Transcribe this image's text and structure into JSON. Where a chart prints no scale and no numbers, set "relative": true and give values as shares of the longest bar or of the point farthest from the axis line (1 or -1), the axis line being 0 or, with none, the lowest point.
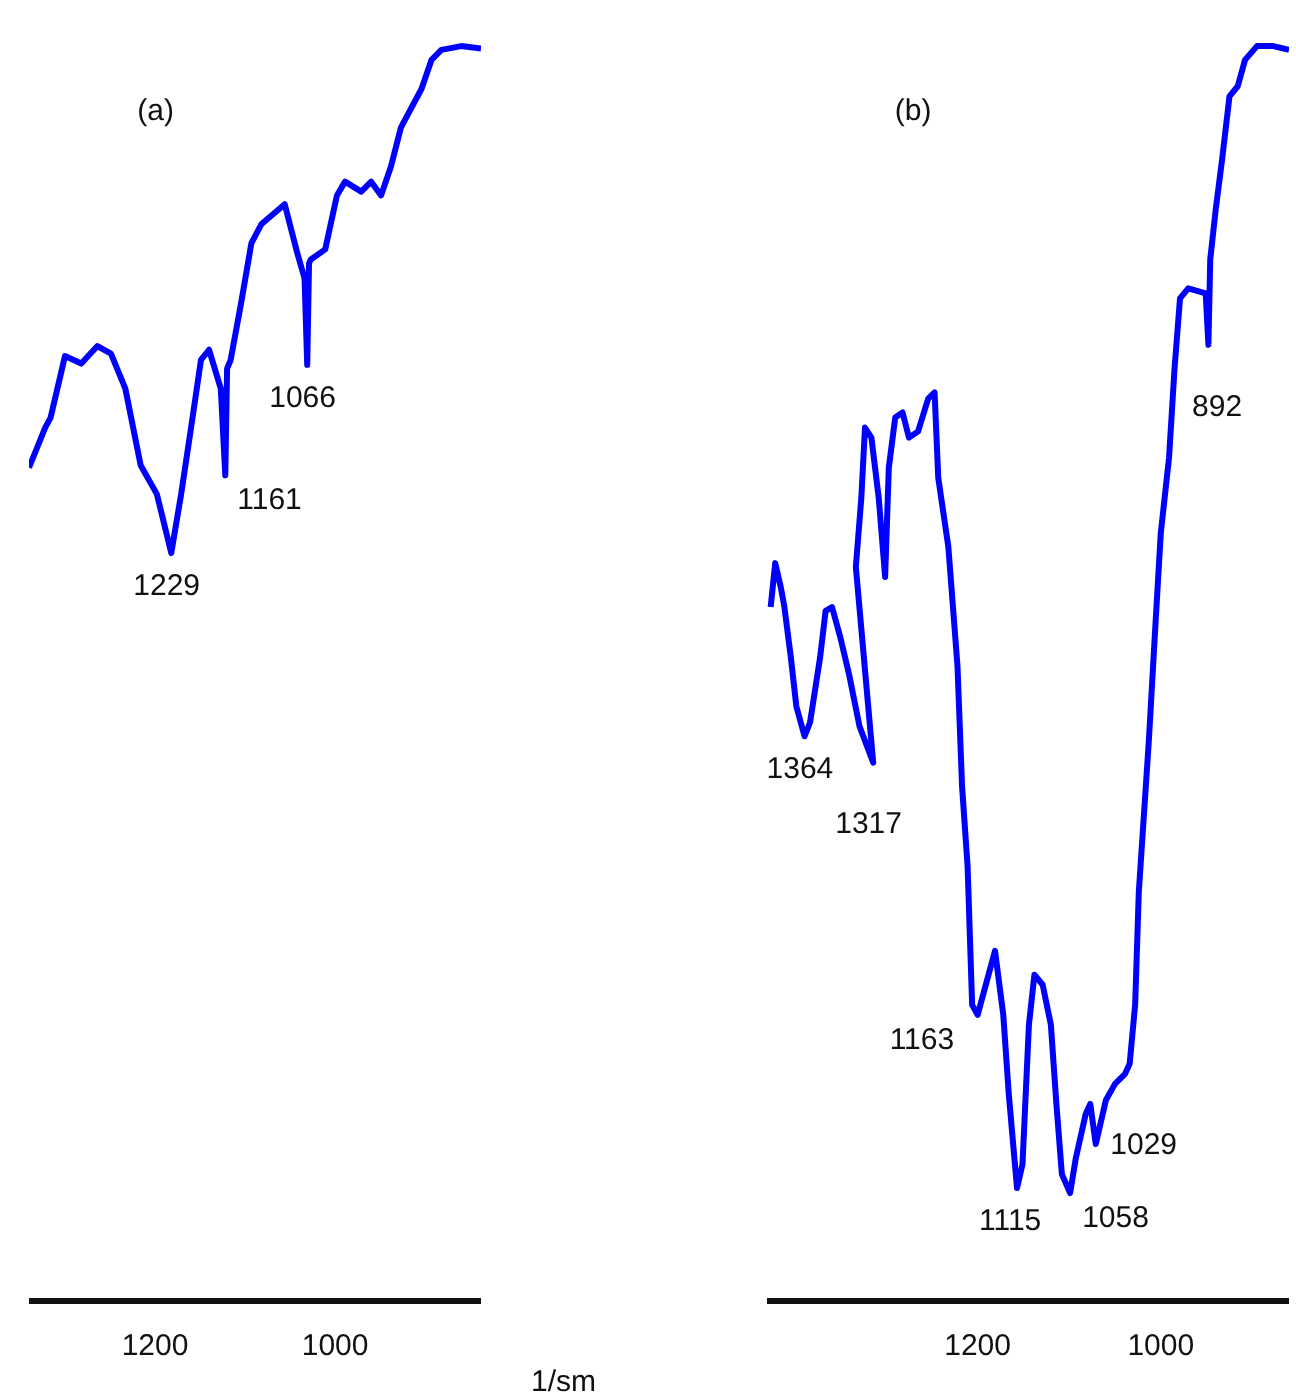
{
  "chart_data": [
    {
      "type": "line",
      "title": "(a)",
      "xlabel": "1/sm",
      "relative": true,
      "xlim": [
        1340,
        838
      ],
      "xticks": [
        1200,
        1000
      ],
      "grid": false,
      "legend": false,
      "tick_labels": "x",
      "series": [
        {
          "color": "#0000ff",
          "x": [
            1340,
            1322,
            1316,
            1300,
            1282,
            1264,
            1249,
            1233,
            1216,
            1198,
            1182,
            1171,
            1160,
            1149,
            1140,
            1127,
            1122,
            1120,
            1116,
            1104,
            1093,
            1082,
            1056,
            1042,
            1034,
            1031,
            1029,
            1027,
            1011,
            998,
            989,
            971,
            960,
            949,
            938,
            927,
            904,
            893,
            882,
            860,
            838
          ],
          "values": [
            0.664,
            0.696,
            0.704,
            0.753,
            0.747,
            0.761,
            0.755,
            0.727,
            0.666,
            0.643,
            0.596,
            0.643,
            0.696,
            0.75,
            0.758,
            0.727,
            0.658,
            0.743,
            0.75,
            0.797,
            0.843,
            0.858,
            0.874,
            0.835,
            0.815,
            0.746,
            0.827,
            0.83,
            0.838,
            0.881,
            0.892,
            0.884,
            0.892,
            0.881,
            0.904,
            0.935,
            0.966,
            0.989,
            0.997,
            1.0,
            0.998
          ]
        }
      ],
      "annotations": [
        {
          "text": "1229",
          "x": 1182,
          "y": 0.596
        },
        {
          "text": "1161",
          "x": 1122,
          "y": 0.658
        },
        {
          "text": "1066",
          "x": 1031,
          "y": 0.746
        }
      ]
    },
    {
      "type": "line",
      "title": "(b)",
      "relative": true,
      "xlim": [
        1430,
        860
      ],
      "xticks": [
        1200,
        1000
      ],
      "grid": false,
      "legend": false,
      "tick_labels": "x",
      "series": [
        {
          "color": "#0000ff",
          "x": [
            1426,
            1421,
            1415,
            1411,
            1404,
            1398,
            1389,
            1383,
            1372,
            1366,
            1359,
            1350,
            1340,
            1329,
            1314,
            1333,
            1327,
            1323,
            1316,
            1308,
            1301,
            1297,
            1290,
            1282,
            1275,
            1265,
            1254,
            1247,
            1243,
            1232,
            1222,
            1217,
            1211,
            1206,
            1200,
            1181,
            1172,
            1166,
            1157,
            1151,
            1144,
            1138,
            1129,
            1120,
            1114,
            1108,
            1099,
            1093,
            1082,
            1077,
            1071,
            1060,
            1050,
            1039,
            1034,
            1028,
            1024,
            1013,
            1006,
            1000,
            991,
            985,
            979,
            970,
            951,
            948,
            946,
            940,
            933,
            925,
            916,
            908,
            895,
            877,
            860
          ],
          "values": [
            0.553,
            0.588,
            0.569,
            0.553,
            0.513,
            0.474,
            0.45,
            0.461,
            0.513,
            0.55,
            0.553,
            0.529,
            0.498,
            0.458,
            0.429,
            0.585,
            0.64,
            0.696,
            0.688,
            0.64,
            0.577,
            0.664,
            0.704,
            0.708,
            0.688,
            0.693,
            0.719,
            0.724,
            0.656,
            0.601,
            0.506,
            0.41,
            0.347,
            0.236,
            0.228,
            0.279,
            0.228,
            0.165,
            0.09,
            0.109,
            0.22,
            0.26,
            0.252,
            0.22,
            0.157,
            0.101,
            0.086,
            0.113,
            0.149,
            0.157,
            0.125,
            0.16,
            0.173,
            0.181,
            0.189,
            0.236,
            0.326,
            0.447,
            0.537,
            0.612,
            0.672,
            0.743,
            0.799,
            0.807,
            0.803,
            0.762,
            0.83,
            0.87,
            0.91,
            0.96,
            0.968,
            0.989,
            1.0,
            1.0,
            0.997
          ]
        }
      ],
      "annotations": [
        {
          "text": "1364",
          "x": 1389,
          "y": 0.45
        },
        {
          "text": "1317",
          "x": 1314,
          "y": 0.429
        },
        {
          "text": "1163",
          "x": 1200,
          "y": 0.228
        },
        {
          "text": "1115",
          "x": 1157,
          "y": 0.09
        },
        {
          "text": "1058",
          "x": 1099,
          "y": 0.086
        },
        {
          "text": "1029",
          "x": 1077,
          "y": 0.157
        },
        {
          "text": "892",
          "x": 979,
          "y": 0.732
        }
      ]
    }
  ]
}
